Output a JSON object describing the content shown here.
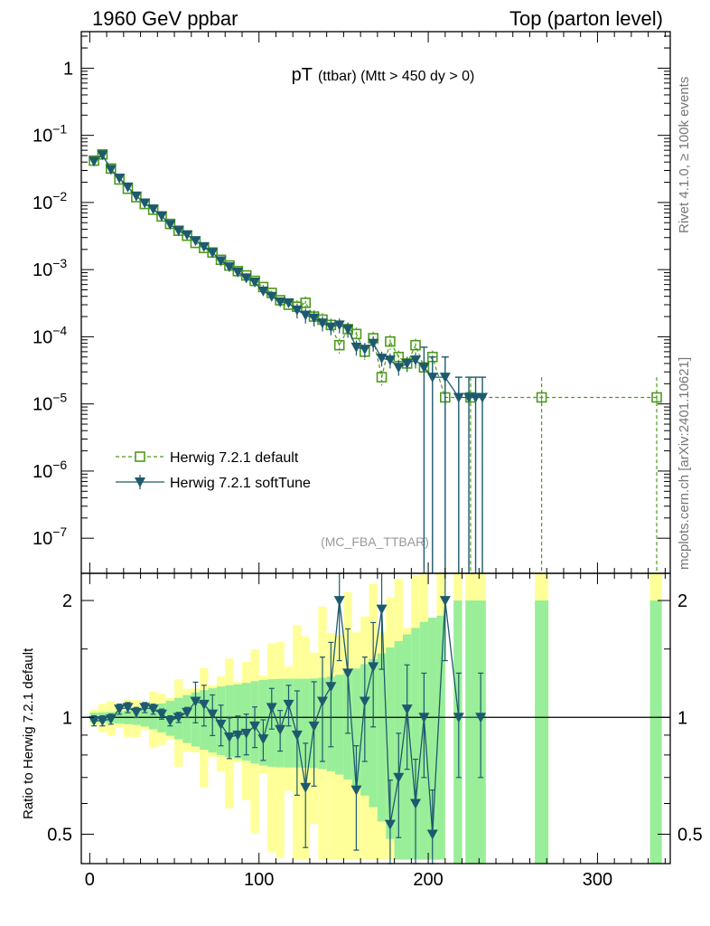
{
  "header": {
    "left": "1960 GeV ppbar",
    "right": "Top (parton level)"
  },
  "side": {
    "rivet": "Rivet 4.1.0, ≥ 100k events",
    "mcplots": "mcplots.cern.ch [arXiv:2401.10621]"
  },
  "chart_data": [
    {
      "type": "scatter",
      "panel": "main",
      "title": "pT",
      "title_sub": "(ttbar) (Mtt > 450 dy > 0)",
      "analysis_label": "(MC_FBA_TTBAR)",
      "yscale": "log",
      "xlim": [
        -5,
        343
      ],
      "ylim": [
        3e-08,
        3.5
      ],
      "y_ticks": [
        {
          "value": 1,
          "base": "1",
          "exp": ""
        },
        {
          "value": 0.1,
          "base": "10",
          "exp": "−1"
        },
        {
          "value": 0.01,
          "base": "10",
          "exp": "−2"
        },
        {
          "value": 0.001,
          "base": "10",
          "exp": "−3"
        },
        {
          "value": 0.0001,
          "base": "10",
          "exp": "−4"
        },
        {
          "value": 1e-05,
          "base": "10",
          "exp": "−5"
        },
        {
          "value": 1e-06,
          "base": "10",
          "exp": "−6"
        },
        {
          "value": 1e-07,
          "base": "10",
          "exp": "−7"
        }
      ],
      "legend": {
        "position": "bottom-left",
        "entries": [
          "Herwig 7.2.1 default",
          "Herwig 7.2.1 softTune"
        ]
      },
      "series": [
        {
          "name": "Herwig 7.2.1 default",
          "color": "#4d9a1a",
          "marker": "open-square",
          "line": "dashed",
          "points": [
            [
              2.5,
              0.042
            ],
            [
              7.5,
              0.052
            ],
            [
              12.5,
              0.032
            ],
            [
              17.5,
              0.022
            ],
            [
              22.5,
              0.016
            ],
            [
              27.5,
              0.012
            ],
            [
              32.5,
              0.0095
            ],
            [
              37.5,
              0.0078
            ],
            [
              42.5,
              0.0062
            ],
            [
              47.5,
              0.0048
            ],
            [
              52.5,
              0.0038
            ],
            [
              57.5,
              0.0032
            ],
            [
              62.5,
              0.0025
            ],
            [
              67.5,
              0.0021
            ],
            [
              72.5,
              0.0018
            ],
            [
              77.5,
              0.0014
            ],
            [
              82.5,
              0.00115
            ],
            [
              87.5,
              0.00095
            ],
            [
              92.5,
              0.00082
            ],
            [
              97.5,
              0.00068
            ],
            [
              102.5,
              0.00055
            ],
            [
              107.5,
              0.00045
            ],
            [
              112.5,
              0.00035
            ],
            [
              117.5,
              0.0003
            ],
            [
              122.5,
              0.00028
            ],
            [
              127.5,
              0.00032
            ],
            [
              132.5,
              0.0002
            ],
            [
              137.5,
              0.00018
            ],
            [
              142.5,
              0.00015
            ],
            [
              147.5,
              7.5e-05
            ],
            [
              152.5,
              0.00013
            ],
            [
              157.5,
              0.00011
            ],
            [
              162.5,
              6e-05
            ],
            [
              167.5,
              9.5e-05
            ],
            [
              172.5,
              2.5e-05
            ],
            [
              177.5,
              8.5e-05
            ],
            [
              182.5,
              5e-05
            ],
            [
              187.5,
              4e-05
            ],
            [
              192.5,
              7.5e-05
            ],
            [
              197.5,
              3.5e-05
            ],
            [
              202.5,
              5e-05
            ],
            [
              210,
              1.25e-05
            ],
            [
              225,
              1.25e-05
            ],
            [
              267,
              1.25e-05
            ],
            [
              335,
              1.25e-05
            ]
          ]
        },
        {
          "name": "Herwig 7.2.1 softTune",
          "color": "#1d5a6e",
          "marker": "filled-triangle-down",
          "line": "solid",
          "points": [
            [
              2.5,
              0.041
            ],
            [
              7.5,
              0.051
            ],
            [
              12.5,
              0.031
            ],
            [
              17.5,
              0.023
            ],
            [
              22.5,
              0.017
            ],
            [
              27.5,
              0.0125
            ],
            [
              32.5,
              0.0098
            ],
            [
              37.5,
              0.008
            ],
            [
              42.5,
              0.0063
            ],
            [
              47.5,
              0.0047
            ],
            [
              52.5,
              0.0038
            ],
            [
              57.5,
              0.0033
            ],
            [
              62.5,
              0.0027
            ],
            [
              67.5,
              0.0022
            ],
            [
              72.5,
              0.0018
            ],
            [
              77.5,
              0.00135
            ],
            [
              82.5,
              0.0011
            ],
            [
              87.5,
              0.00092
            ],
            [
              92.5,
              0.00075
            ],
            [
              97.5,
              0.00065
            ],
            [
              102.5,
              0.00048
            ],
            [
              107.5,
              0.0004
            ],
            [
              112.5,
              0.00033
            ],
            [
              117.5,
              0.00032
            ],
            [
              122.5,
              0.00025
            ],
            [
              127.5,
              0.00021
            ],
            [
              132.5,
              0.00019
            ],
            [
              137.5,
              0.00016
            ],
            [
              142.5,
              0.00014
            ],
            [
              147.5,
              0.00015
            ],
            [
              152.5,
              0.00013
            ],
            [
              157.5,
              7e-05
            ],
            [
              162.5,
              6.5e-05
            ],
            [
              167.5,
              8e-05
            ],
            [
              172.5,
              4.8e-05
            ],
            [
              177.5,
              4.5e-05
            ],
            [
              182.5,
              3.5e-05
            ],
            [
              187.5,
              4e-05
            ],
            [
              192.5,
              4.5e-05
            ],
            [
              197.5,
              3.5e-05
            ],
            [
              202.5,
              2.5e-05
            ],
            [
              210,
              2.5e-05
            ],
            [
              218,
              1.25e-05
            ],
            [
              224,
              1.25e-05
            ],
            [
              228,
              1.25e-05
            ],
            [
              232,
              1.25e-05
            ]
          ]
        }
      ]
    },
    {
      "type": "line",
      "panel": "ratio",
      "ylabel": "Ratio to Herwig 7.2.1 default",
      "xlabel": "",
      "yscale": "log",
      "xlim": [
        -5,
        343
      ],
      "ylim": [
        0.42,
        2.35
      ],
      "x_ticks": [
        0,
        100,
        200,
        300
      ],
      "y_ticks": [
        0.5,
        1,
        2
      ],
      "reference": 1,
      "bands": [
        {
          "x": [
            0,
            30,
            60,
            90,
            120,
            150,
            180,
            200
          ],
          "inner_frac": [
            0.04,
            0.05,
            0.12,
            0.18,
            0.3,
            0.42,
            0.55,
            0.65
          ],
          "outer_frac": [
            0.07,
            0.1,
            0.22,
            0.35,
            0.55,
            0.8,
            1.0,
            1.2
          ]
        }
      ],
      "series": [
        {
          "name": "Herwig 7.2.1 softTune",
          "color": "#1d5a6e",
          "points": [
            [
              2.5,
              0.98
            ],
            [
              7.5,
              0.98
            ],
            [
              12.5,
              0.99
            ],
            [
              17.5,
              1.05
            ],
            [
              22.5,
              1.06
            ],
            [
              27.5,
              1.03
            ],
            [
              32.5,
              1.06
            ],
            [
              37.5,
              1.05
            ],
            [
              42.5,
              1.02
            ],
            [
              47.5,
              0.98
            ],
            [
              52.5,
              1.0
            ],
            [
              57.5,
              1.03
            ],
            [
              62.5,
              1.1
            ],
            [
              67.5,
              1.08
            ],
            [
              72.5,
              1.02
            ],
            [
              77.5,
              0.96
            ],
            [
              82.5,
              0.89
            ],
            [
              87.5,
              0.9
            ],
            [
              92.5,
              0.91
            ],
            [
              97.5,
              0.95
            ],
            [
              102.5,
              0.88
            ],
            [
              107.5,
              1.06
            ],
            [
              112.5,
              0.93
            ],
            [
              117.5,
              1.08
            ],
            [
              122.5,
              0.9
            ],
            [
              127.5,
              0.66
            ],
            [
              132.5,
              0.95
            ],
            [
              137.5,
              1.1
            ],
            [
              142.5,
              1.2
            ],
            [
              147.5,
              2.0
            ],
            [
              152.5,
              1.3
            ],
            [
              157.5,
              0.65
            ],
            [
              162.5,
              1.1
            ],
            [
              167.5,
              1.35
            ],
            [
              172.5,
              1.9
            ],
            [
              177.5,
              0.53
            ],
            [
              182.5,
              0.7
            ],
            [
              187.5,
              1.05
            ],
            [
              192.5,
              0.6
            ],
            [
              197.5,
              1.0
            ],
            [
              202.5,
              0.5
            ],
            [
              210,
              2.0
            ],
            [
              218,
              1.0
            ],
            [
              231,
              1.0
            ]
          ]
        }
      ]
    }
  ]
}
